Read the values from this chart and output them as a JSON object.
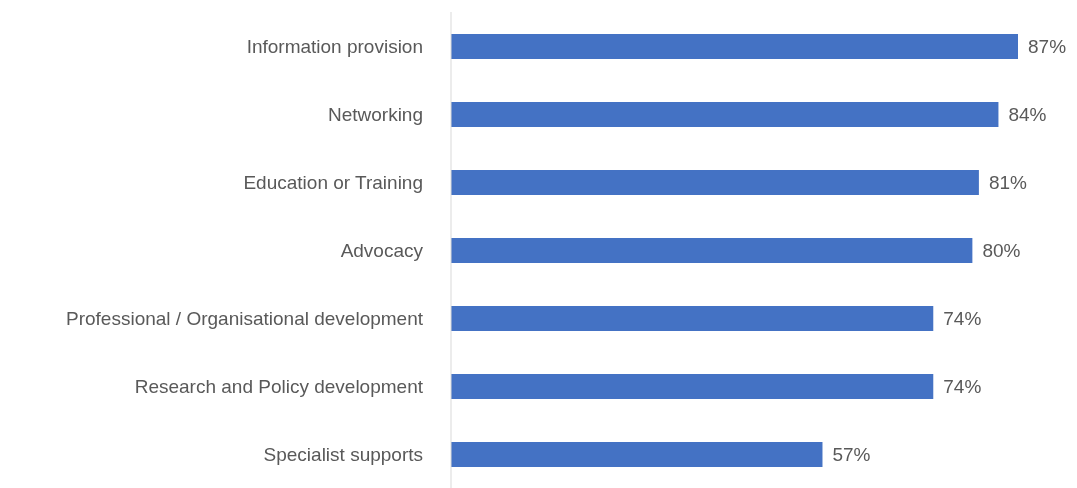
{
  "chart_data": {
    "type": "bar",
    "orientation": "horizontal",
    "categories": [
      "Information provision",
      "Networking",
      "Education or Training",
      "Advocacy",
      "Professional / Organisational development",
      "Research and Policy development",
      "Specialist supports"
    ],
    "values": [
      87,
      84,
      81,
      80,
      74,
      74,
      57
    ],
    "value_labels": [
      "87%",
      "84%",
      "81%",
      "80%",
      "74%",
      "74%",
      "57%"
    ],
    "color": "#4472c4",
    "grid": false,
    "legend": false
  }
}
